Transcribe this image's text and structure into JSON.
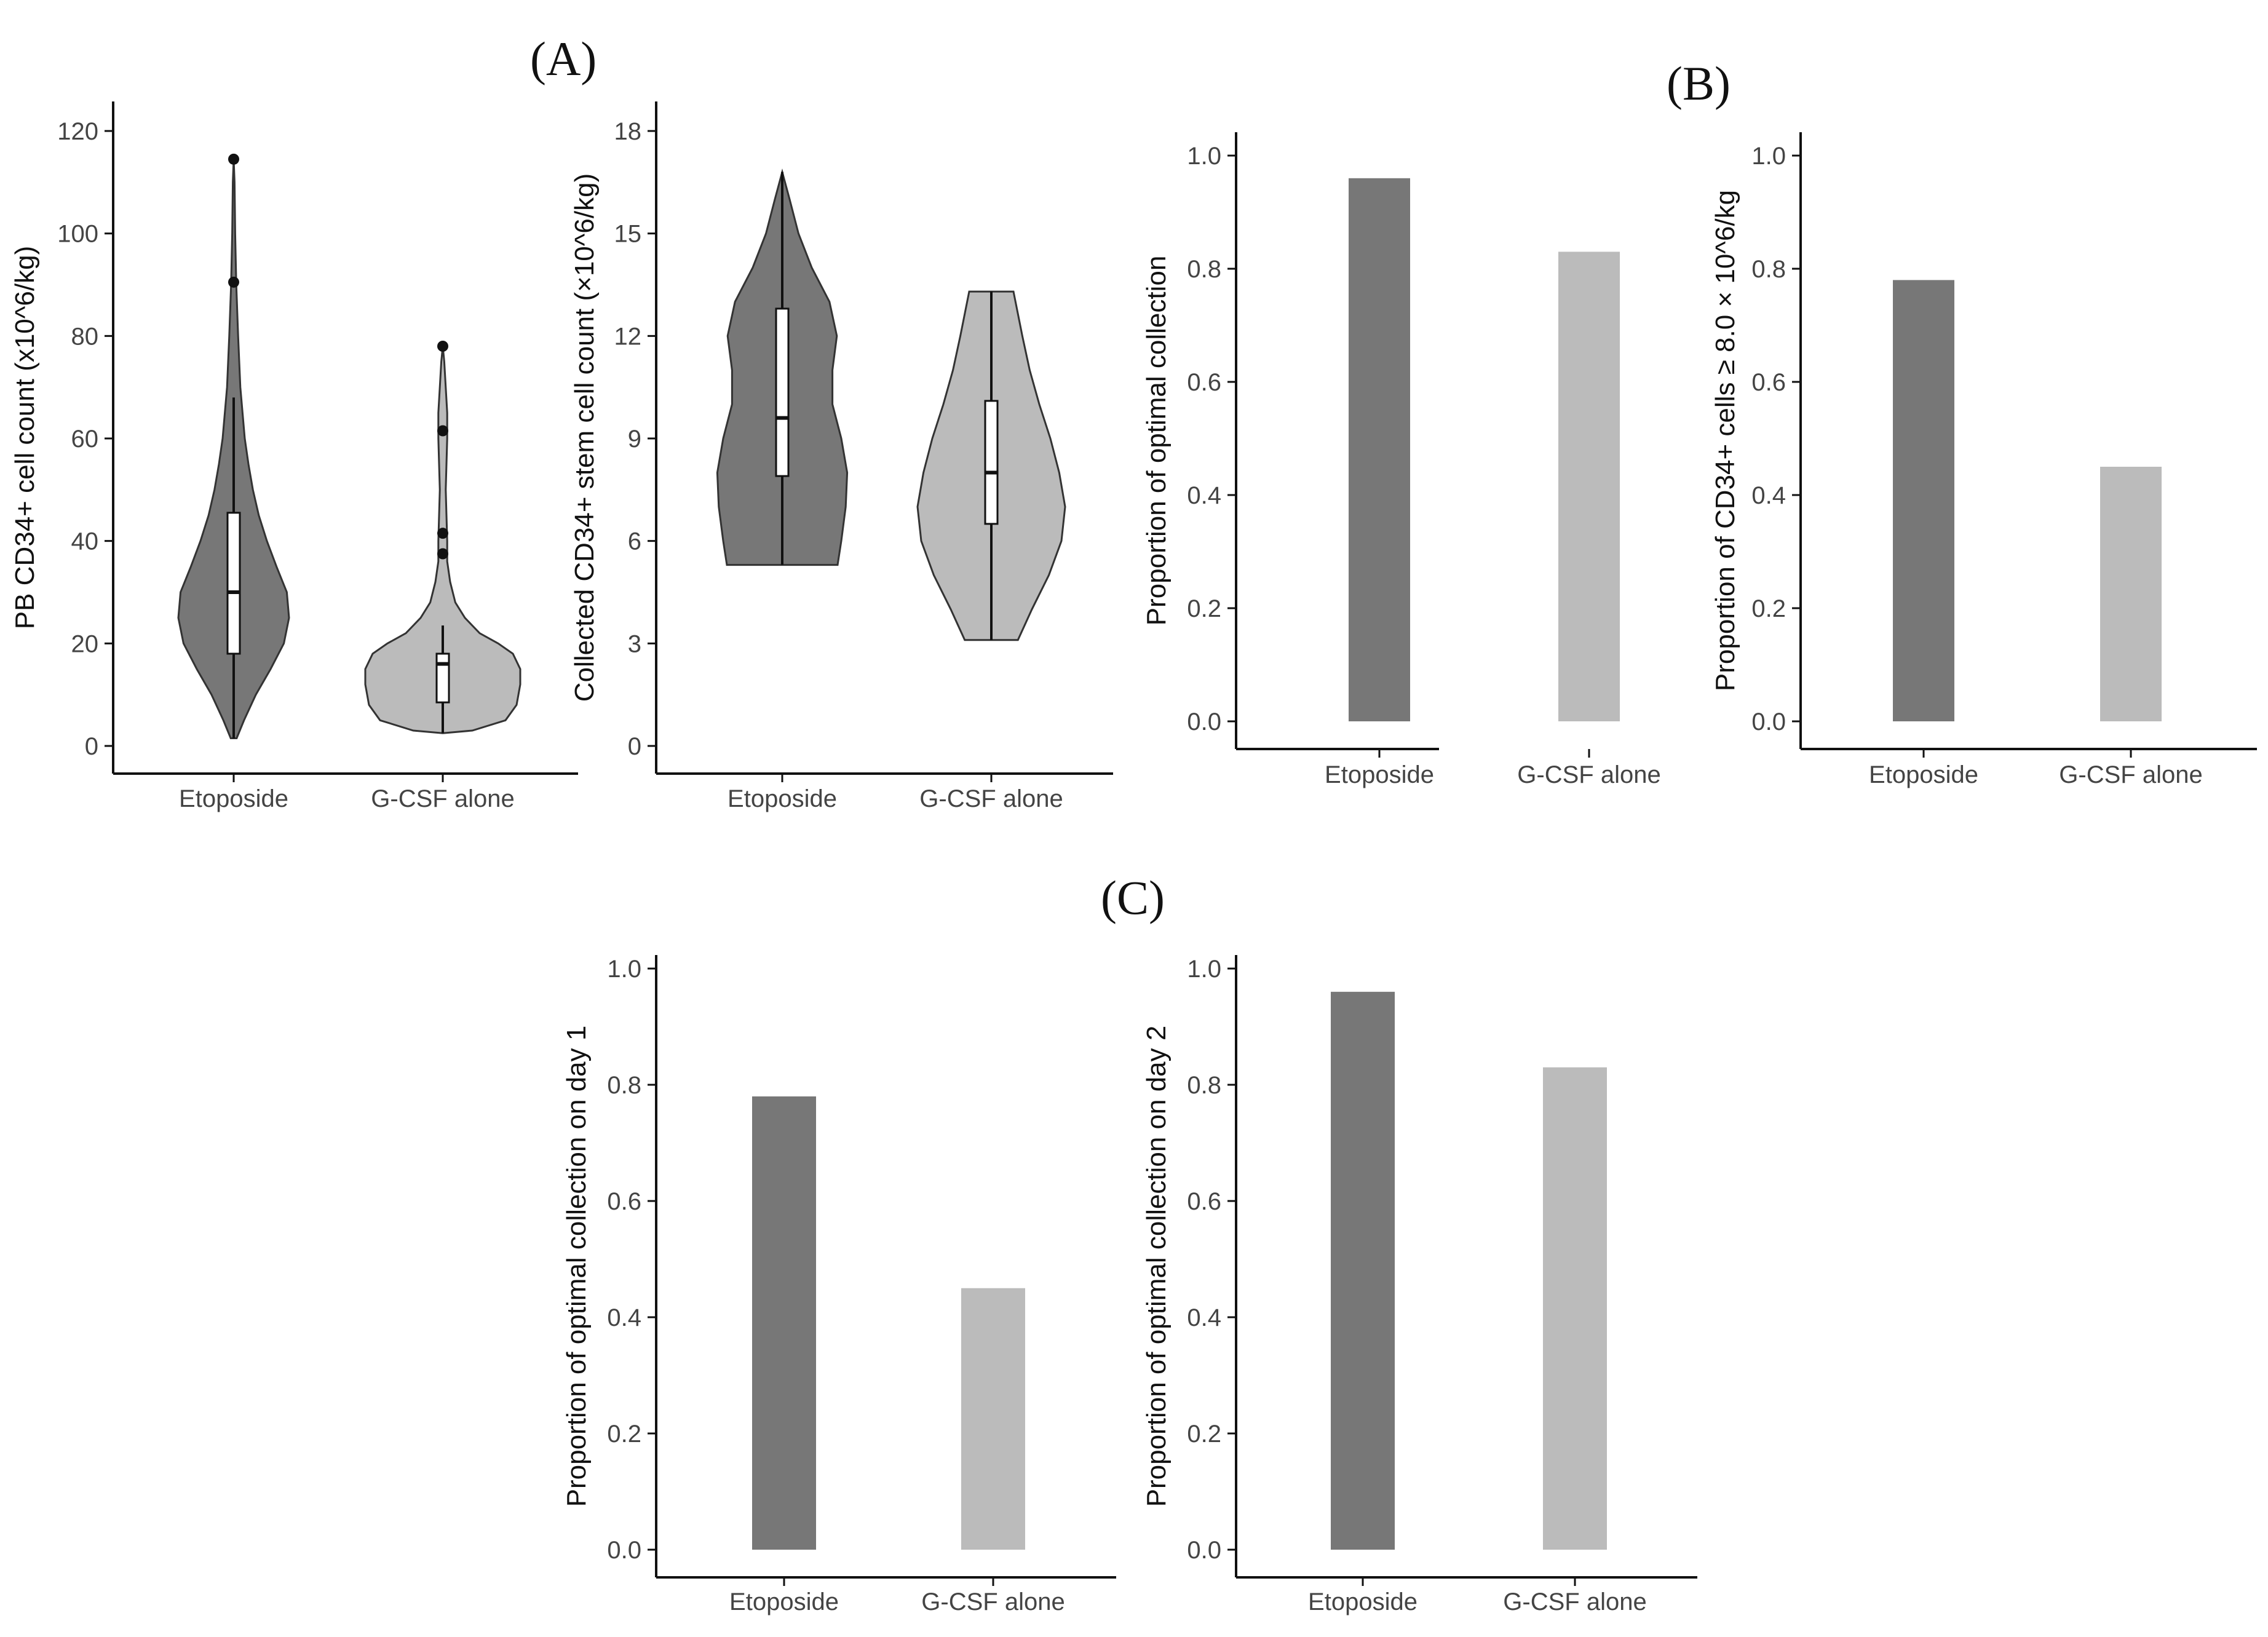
{
  "panel_labels": {
    "a": "(A)",
    "b": "(B)",
    "c": "(C)"
  },
  "colors": {
    "etoposide": "#777777",
    "gcsf": "#bbbbbb",
    "outline": "#333333",
    "box": "#ffffff"
  },
  "chart_data": [
    {
      "id": "violin1",
      "type": "violin",
      "ylabel": "PB CD34+ cell count (x10^6/kg)",
      "categories": [
        "Etoposide",
        "G-CSF alone"
      ],
      "ylim": [
        0,
        120
      ],
      "yticks": [
        0,
        20,
        40,
        60,
        80,
        100,
        120
      ],
      "series": [
        {
          "name": "Etoposide",
          "shape": [
            [
              1.5,
              0.04
            ],
            [
              5,
              0.14
            ],
            [
              10,
              0.3
            ],
            [
              15,
              0.5
            ],
            [
              20,
              0.68
            ],
            [
              25,
              0.75
            ],
            [
              30,
              0.72
            ],
            [
              35,
              0.58
            ],
            [
              40,
              0.45
            ],
            [
              45,
              0.34
            ],
            [
              50,
              0.26
            ],
            [
              55,
              0.2
            ],
            [
              60,
              0.15
            ],
            [
              70,
              0.09
            ],
            [
              80,
              0.06
            ],
            [
              90,
              0.035
            ],
            [
              100,
              0.02
            ],
            [
              110,
              0.012
            ],
            [
              114.5,
              0.0
            ]
          ],
          "q1": 18,
          "median": 30,
          "q3": 45.5,
          "whisker_low": 1.5,
          "whisker_high": 68,
          "outliers": [
            90.5,
            114.5
          ]
        },
        {
          "name": "G-CSF alone",
          "shape": [
            [
              2.5,
              0.0
            ],
            [
              3,
              0.4
            ],
            [
              5,
              0.85
            ],
            [
              8,
              1.0
            ],
            [
              12,
              1.05
            ],
            [
              15,
              1.05
            ],
            [
              18,
              0.95
            ],
            [
              20,
              0.75
            ],
            [
              22,
              0.5
            ],
            [
              25,
              0.3
            ],
            [
              28,
              0.17
            ],
            [
              32,
              0.1
            ],
            [
              36,
              0.06
            ],
            [
              40,
              0.06
            ],
            [
              45,
              0.05
            ],
            [
              50,
              0.04
            ],
            [
              55,
              0.05
            ],
            [
              60,
              0.06
            ],
            [
              65,
              0.06
            ],
            [
              70,
              0.04
            ],
            [
              75,
              0.02
            ],
            [
              78,
              0.0
            ]
          ],
          "q1": 8.5,
          "median": 16,
          "q3": 18,
          "whisker_low": 2.5,
          "whisker_high": 23.5,
          "outliers": [
            37.5,
            41.5,
            61.5,
            78
          ]
        }
      ]
    },
    {
      "id": "violin2",
      "type": "violin",
      "ylabel": "Collected CD34+ stem cell count (×10^6/kg)",
      "categories": [
        "Etoposide",
        "G-CSF alone"
      ],
      "ylim": [
        0,
        18
      ],
      "yticks": [
        0,
        3,
        6,
        9,
        12,
        15,
        18
      ],
      "series": [
        {
          "name": "Etoposide",
          "shape": [
            [
              5.3,
              0.75
            ],
            [
              6,
              0.8
            ],
            [
              7,
              0.86
            ],
            [
              8,
              0.88
            ],
            [
              9,
              0.8
            ],
            [
              10,
              0.68
            ],
            [
              11,
              0.68
            ],
            [
              12,
              0.74
            ],
            [
              13,
              0.64
            ],
            [
              14,
              0.4
            ],
            [
              15,
              0.22
            ],
            [
              16,
              0.1
            ],
            [
              16.8,
              0.0
            ]
          ],
          "q1": 7.9,
          "median": 9.6,
          "q3": 12.8,
          "whisker_low": 5.3,
          "whisker_high": 16.8,
          "outliers": []
        },
        {
          "name": "G-CSF alone",
          "shape": [
            [
              3.1,
              0.36
            ],
            [
              4,
              0.55
            ],
            [
              5,
              0.78
            ],
            [
              6,
              0.95
            ],
            [
              7,
              1.0
            ],
            [
              8,
              0.92
            ],
            [
              9,
              0.8
            ],
            [
              10,
              0.65
            ],
            [
              11,
              0.52
            ],
            [
              12,
              0.42
            ],
            [
              13.3,
              0.3
            ]
          ],
          "q1": 6.5,
          "median": 8,
          "q3": 10.1,
          "whisker_low": 3.1,
          "whisker_high": 13.3,
          "outliers": []
        }
      ]
    },
    {
      "id": "barB1",
      "type": "bar",
      "ylabel": "Proportion of optimal collection",
      "categories": [
        "Etoposide",
        "G-CSF alone"
      ],
      "values": [
        0.96,
        0.83
      ],
      "ylim": [
        0,
        1.0
      ],
      "yticks": [
        "0.0",
        "0.2",
        "0.4",
        "0.6",
        "0.8",
        "1.0"
      ]
    },
    {
      "id": "barB2",
      "type": "bar",
      "ylabel": "Proportion of CD34+ cells ≥ 8.0 × 10^6/kg",
      "categories": [
        "Etoposide",
        "G-CSF alone"
      ],
      "values": [
        0.78,
        0.45
      ],
      "ylim": [
        0,
        1.0
      ],
      "yticks": [
        "0.0",
        "0.2",
        "0.4",
        "0.6",
        "0.8",
        "1.0"
      ]
    },
    {
      "id": "barC1",
      "type": "bar",
      "ylabel": "Proportion of optimal collection on day 1",
      "categories": [
        "Etoposide",
        "G-CSF alone"
      ],
      "values": [
        0.78,
        0.45
      ],
      "ylim": [
        0,
        1.0
      ],
      "yticks": [
        "0.0",
        "0.2",
        "0.4",
        "0.6",
        "0.8",
        "1.0"
      ]
    },
    {
      "id": "barC2",
      "type": "bar",
      "ylabel": "Proportion of optimal collection on day 2",
      "categories": [
        "Etoposide",
        "G-CSF alone"
      ],
      "values": [
        0.96,
        0.83
      ],
      "ylim": [
        0,
        1.0
      ],
      "yticks": [
        "0.0",
        "0.2",
        "0.4",
        "0.6",
        "0.8",
        "1.0"
      ]
    }
  ]
}
